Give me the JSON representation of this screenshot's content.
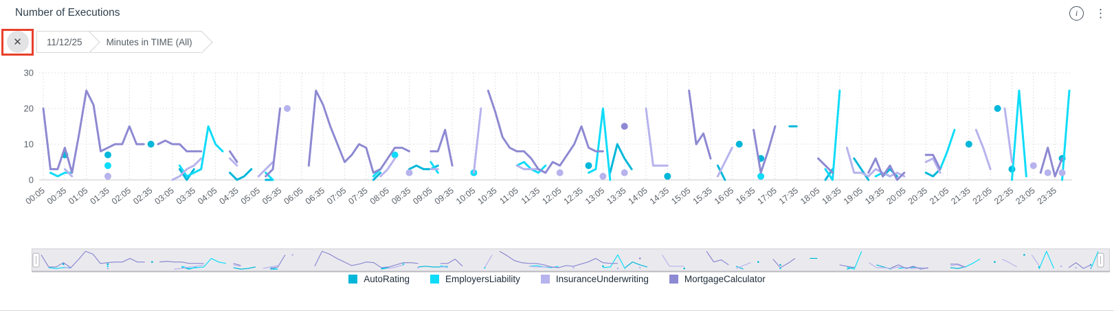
{
  "panel": {
    "title": "Number of Executions"
  },
  "top_icons": {
    "info_glyph": "i",
    "kebab_glyph": "⋮"
  },
  "filter_bar": {
    "close_glyph": "✕",
    "highlight_color": "#e8402a",
    "items": [
      {
        "label": "11/12/25"
      },
      {
        "label": "Minutes in TIME (All)"
      }
    ]
  },
  "chart_data": {
    "type": "line",
    "title": "Number of Executions",
    "ylabel": "",
    "xlabel": "",
    "ylim": [
      0,
      30
    ],
    "y_ticks": [
      0,
      10,
      20,
      30
    ],
    "grid": "dotted",
    "legend_position": "bottom",
    "x_note": "data points every 10 minutes; labels every 30 minutes",
    "x_labels": [
      "00:05",
      "00:35",
      "01:05",
      "01:35",
      "02:05",
      "02:35",
      "03:05",
      "03:35",
      "04:05",
      "04:35",
      "05:05",
      "05:35",
      "06:05",
      "06:35",
      "07:05",
      "07:35",
      "08:05",
      "08:35",
      "09:05",
      "09:35",
      "10:05",
      "10:35",
      "11:05",
      "11:35",
      "12:05",
      "12:35",
      "13:05",
      "13:35",
      "14:05",
      "14:35",
      "15:05",
      "15:35",
      "16:05",
      "16:35",
      "17:05",
      "17:35",
      "18:05",
      "18:35",
      "19:05",
      "19:35",
      "20:05",
      "20:35",
      "21:05",
      "21:35",
      "22:05",
      "22:35",
      "23:05",
      "23:35"
    ],
    "series": [
      {
        "name": "AutoRating",
        "color": "#00b7d9",
        "values": [
          null,
          null,
          null,
          7,
          null,
          null,
          null,
          null,
          null,
          7,
          null,
          null,
          null,
          null,
          null,
          10,
          null,
          null,
          null,
          3,
          0,
          3,
          null,
          null,
          null,
          null,
          2,
          0,
          1,
          3,
          null,
          0,
          0,
          null,
          null,
          null,
          null,
          null,
          null,
          null,
          null,
          null,
          null,
          null,
          null,
          null,
          0,
          2,
          null,
          null,
          null,
          3,
          4,
          3,
          3,
          4,
          null,
          null,
          null,
          null,
          null,
          null,
          null,
          null,
          null,
          null,
          null,
          null,
          null,
          null,
          null,
          null,
          null,
          null,
          null,
          null,
          4,
          null,
          null,
          2,
          10,
          6,
          3,
          null,
          null,
          null,
          null,
          1,
          null,
          null,
          null,
          null,
          null,
          null,
          4,
          0,
          null,
          10,
          null,
          null,
          6,
          null,
          null,
          null,
          15,
          15,
          null,
          null,
          null,
          0,
          3,
          null,
          null,
          6,
          3,
          0,
          null,
          1,
          3,
          1,
          null,
          null,
          null,
          2,
          1,
          3,
          null,
          null,
          null,
          10,
          null,
          null,
          null,
          20,
          null,
          3,
          null,
          null,
          null,
          null,
          null,
          null,
          6,
          null
        ]
      },
      {
        "name": "EmployersLiability",
        "color": "#0fdcf8",
        "values": [
          null,
          2,
          1,
          2,
          2,
          null,
          null,
          null,
          null,
          4,
          null,
          null,
          null,
          null,
          null,
          null,
          null,
          null,
          null,
          4,
          1,
          2,
          3,
          15,
          10,
          8,
          null,
          null,
          null,
          null,
          null,
          2,
          0,
          null,
          null,
          null,
          null,
          null,
          null,
          null,
          null,
          null,
          null,
          null,
          null,
          null,
          1,
          3,
          null,
          7,
          null,
          null,
          null,
          null,
          5,
          2,
          null,
          null,
          null,
          null,
          2,
          null,
          null,
          null,
          null,
          null,
          4,
          5,
          3,
          2,
          4,
          null,
          null,
          null,
          null,
          null,
          2,
          3,
          20,
          0,
          null,
          null,
          null,
          null,
          null,
          null,
          null,
          null,
          null,
          null,
          null,
          null,
          null,
          null,
          null,
          null,
          null,
          null,
          null,
          null,
          1,
          null,
          null,
          null,
          null,
          null,
          null,
          null,
          null,
          3,
          0,
          25,
          null,
          null,
          null,
          null,
          1,
          2,
          1,
          null,
          null,
          null,
          null,
          null,
          null,
          3,
          8,
          14,
          null,
          null,
          null,
          null,
          null,
          null,
          null,
          0,
          25,
          1,
          null,
          null,
          null,
          null,
          0,
          25
        ]
      },
      {
        "name": "InsuranceUnderwriting",
        "color": "#b7b3ed",
        "values": [
          null,
          null,
          null,
          3,
          1,
          null,
          null,
          null,
          null,
          1,
          null,
          null,
          null,
          null,
          null,
          null,
          null,
          null,
          0,
          1,
          3,
          4,
          6,
          null,
          null,
          null,
          6,
          4,
          null,
          null,
          1,
          3,
          5,
          null,
          20,
          null,
          null,
          null,
          null,
          null,
          null,
          null,
          null,
          null,
          null,
          null,
          null,
          1,
          3,
          6,
          null,
          2,
          null,
          null,
          3,
          3,
          null,
          null,
          null,
          null,
          2,
          20,
          null,
          null,
          null,
          null,
          4,
          3,
          3,
          3,
          2,
          null,
          2,
          null,
          null,
          null,
          null,
          null,
          1,
          null,
          null,
          2,
          null,
          null,
          20,
          4,
          4,
          4,
          null,
          null,
          null,
          null,
          null,
          null,
          1,
          5,
          9,
          null,
          null,
          null,
          null,
          null,
          null,
          null,
          null,
          null,
          null,
          null,
          null,
          null,
          null,
          null,
          9,
          2,
          2,
          1,
          3,
          2,
          1,
          2,
          1,
          null,
          null,
          5,
          6,
          2,
          null,
          null,
          null,
          null,
          14,
          9,
          3,
          null,
          20,
          5,
          null,
          null,
          4,
          null,
          2,
          null,
          2,
          null
        ]
      },
      {
        "name": "MortgageCalculator",
        "color": "#8d89d2",
        "values": [
          20,
          3,
          3,
          9,
          2,
          13,
          25,
          21,
          8,
          9,
          10,
          10,
          15,
          10,
          10,
          null,
          10,
          11,
          10,
          10,
          8,
          8,
          8,
          null,
          null,
          null,
          8,
          5,
          null,
          null,
          null,
          1,
          3,
          20,
          null,
          null,
          null,
          4,
          25,
          21,
          15,
          10,
          5,
          7,
          10,
          9,
          2,
          3,
          6,
          9,
          9,
          8,
          null,
          null,
          8,
          8,
          14,
          4,
          null,
          null,
          null,
          null,
          25,
          19,
          12,
          9,
          8,
          8,
          6,
          3,
          2,
          5,
          4,
          7,
          10,
          15,
          9,
          8,
          8,
          null,
          null,
          15,
          null,
          null,
          null,
          null,
          null,
          null,
          null,
          null,
          25,
          10,
          13,
          6,
          null,
          null,
          null,
          null,
          null,
          14,
          2,
          8,
          15,
          null,
          null,
          null,
          null,
          null,
          6,
          4,
          2,
          null,
          null,
          null,
          null,
          2,
          6,
          1,
          4,
          0,
          2,
          null,
          null,
          7,
          7,
          3,
          null,
          null,
          null,
          null,
          null,
          null,
          null,
          null,
          null,
          null,
          null,
          null,
          null,
          2,
          9,
          1,
          6,
          null
        ]
      }
    ]
  }
}
